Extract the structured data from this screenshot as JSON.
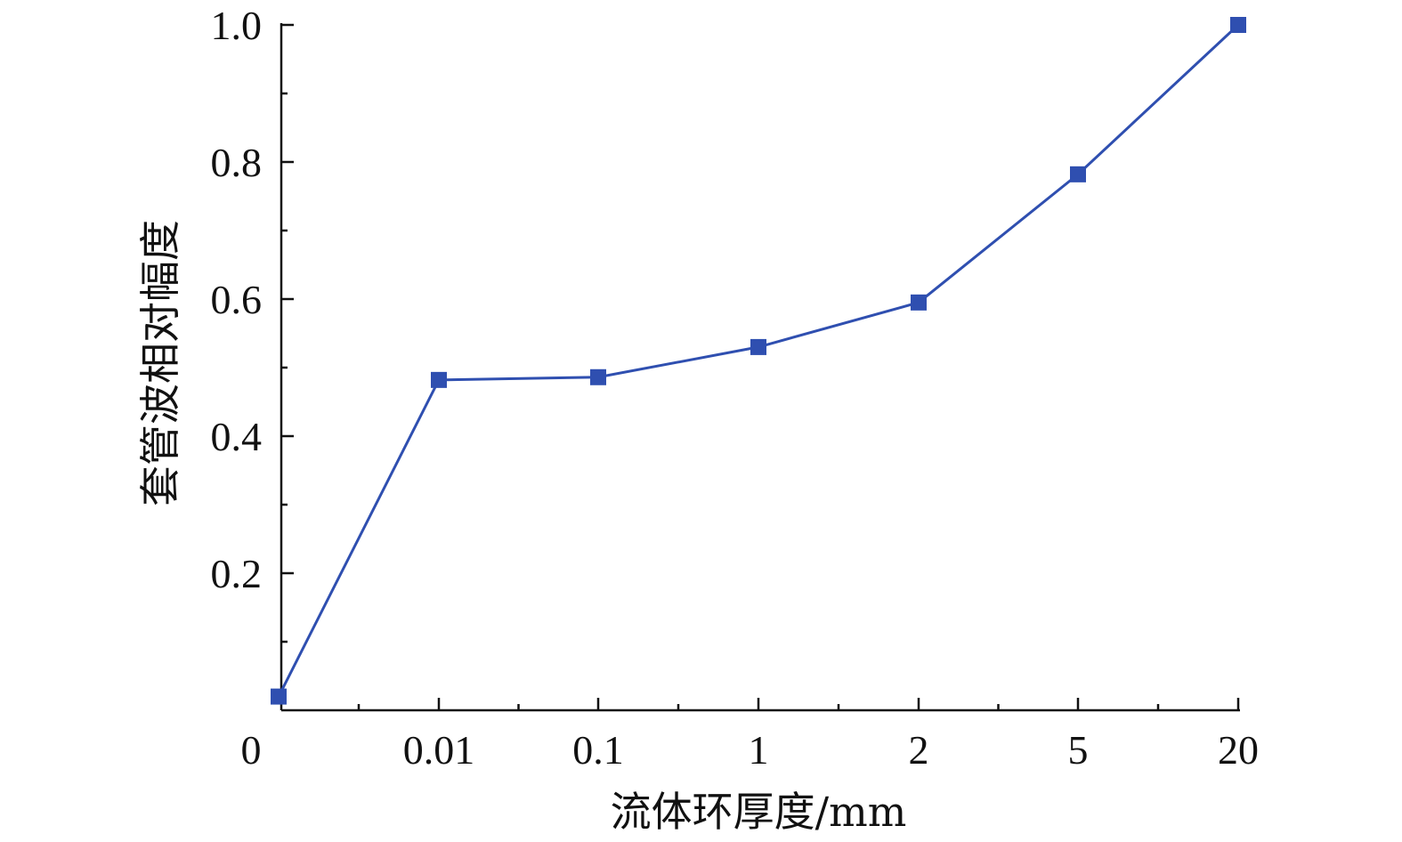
{
  "chart_data": {
    "type": "line",
    "title": "",
    "xlabel": "流体环厚度/mm",
    "ylabel": "套管波相对幅度",
    "categories": [
      "0",
      "0.01",
      "0.1",
      "1",
      "2",
      "5",
      "20"
    ],
    "series": [
      {
        "values": [
          0.02,
          0.482,
          0.486,
          0.53,
          0.595,
          0.782,
          1.0
        ],
        "color": "#2f4fb0",
        "marker": "square"
      }
    ],
    "yticks": [
      "0.2",
      "0.4",
      "0.6",
      "0.8",
      "1.0"
    ],
    "ytick_values": [
      0.2,
      0.4,
      0.6,
      0.8,
      1.0
    ],
    "ylim": [
      0,
      1.0
    ],
    "grid": false,
    "legend": "none"
  }
}
